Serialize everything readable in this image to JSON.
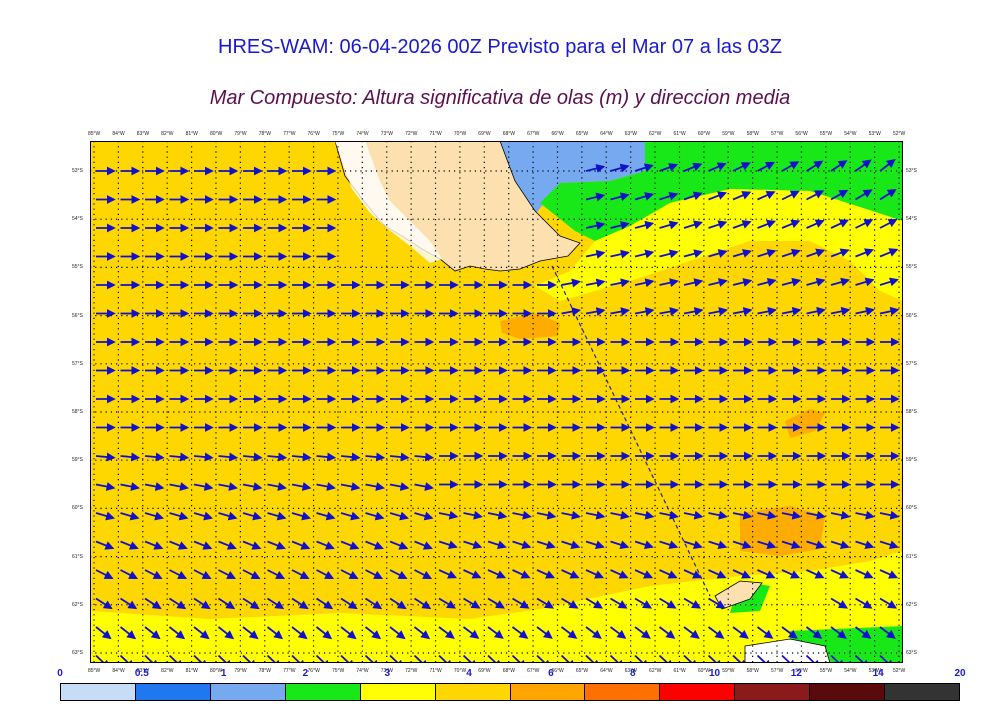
{
  "header": {
    "title": "HRES-WAM: 06-04-2026 00Z Previsto para el Mar 07 a las 03Z",
    "subtitle": "Mar Compuesto: Altura significativa de olas (m) y direccion media"
  },
  "map": {
    "longitudes_deg_w": [
      85,
      84,
      83,
      82,
      81,
      80,
      79,
      78,
      77,
      76,
      75,
      74,
      73,
      72,
      71,
      70,
      69,
      68,
      67,
      66,
      65,
      64,
      63,
      62,
      61,
      60,
      59,
      58,
      57,
      56,
      55,
      54,
      53,
      52
    ],
    "latitudes_deg_s": [
      53,
      54,
      55,
      56,
      57,
      58,
      59,
      60,
      61,
      62,
      63
    ],
    "lon_label_suffix": "°W",
    "lat_label_suffix": "°S",
    "land_color": "#fde0b0",
    "sea_background_level": "4-6 m",
    "grid": "dotted"
  },
  "colorbar": {
    "ticks": [
      "0",
      "0.5",
      "1",
      "2",
      "3",
      "4",
      "6",
      "8",
      "10",
      "12",
      "14",
      "20"
    ],
    "colors": [
      "#c6dcf7",
      "#1f78f0",
      "#76a9f0",
      "#18e818",
      "#ffff00",
      "#ffd700",
      "#ffa500",
      "#ff7000",
      "#ff0000",
      "#8b1a1a",
      "#5a0a0a",
      "#333333"
    ]
  },
  "arrow_color": "#1111cc"
}
